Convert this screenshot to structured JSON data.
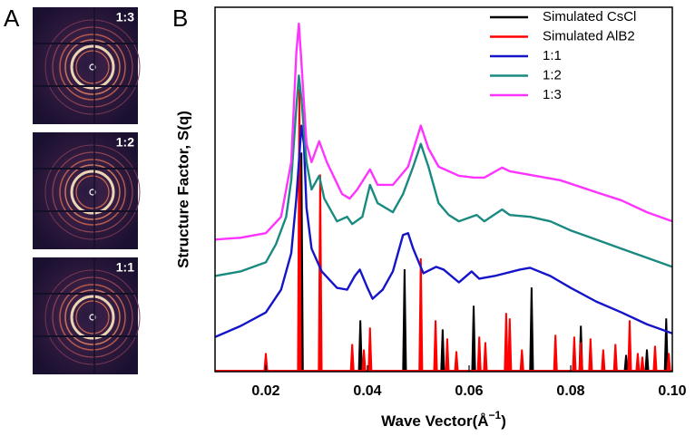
{
  "panel_a": {
    "label": "A",
    "images": [
      {
        "label": "1:3"
      },
      {
        "label": "1:2"
      },
      {
        "label": "1:1"
      }
    ]
  },
  "chart_data": {
    "type": "line",
    "panel_label": "B",
    "xlabel": {
      "text": "Wave Vector(Å",
      "superscript": "−1",
      "suffix": ")"
    },
    "ylabel": "Structure Factor, S(q)",
    "xlim": [
      0.01,
      0.1
    ],
    "ylim": [
      0,
      10
    ],
    "xticks": [
      0.02,
      0.04,
      0.06,
      0.08,
      {
        "value": 0.1,
        "label": "0.10"
      }
    ],
    "legend": "top-right",
    "series": [
      {
        "name": "Simulated CsCl",
        "color": "#000000",
        "mark": "stick",
        "x": [
          0.027,
          0.0386,
          0.0473,
          0.0548,
          0.0609,
          0.0723,
          0.082,
          0.0909,
          0.095,
          0.0988
        ],
        "values": [
          6.0,
          1.4,
          2.8,
          1.15,
          1.8,
          2.3,
          1.25,
          0.45,
          0.6,
          1.45
        ]
      },
      {
        "name": "Simulated AlB2",
        "color": "#ff0000",
        "mark": "stick",
        "x": [
          0.02,
          0.0266,
          0.0307,
          0.037,
          0.0393,
          0.0405,
          0.0505,
          0.0534,
          0.0557,
          0.0575,
          0.062,
          0.0632,
          0.0673,
          0.068,
          0.0704,
          0.077,
          0.0807,
          0.082,
          0.0839,
          0.0864,
          0.0888,
          0.0916,
          0.0932,
          0.0941,
          0.0966,
          0.0993
        ],
        "values": [
          0.5,
          7.75,
          5.4,
          0.75,
          0.6,
          1.2,
          3.1,
          1.4,
          0.9,
          0.55,
          0.95,
          0.8,
          1.6,
          1.45,
          0.6,
          1.0,
          0.95,
          0.8,
          0.9,
          0.6,
          0.75,
          1.4,
          0.5,
          0.4,
          0.7,
          0.5
        ]
      },
      {
        "name": "1:1",
        "color": "#1414c8",
        "mark": "line",
        "x": [
          0.01,
          0.015,
          0.02,
          0.023,
          0.025,
          0.026,
          0.027,
          0.0275,
          0.028,
          0.029,
          0.031,
          0.034,
          0.036,
          0.0375,
          0.0385,
          0.04,
          0.041,
          0.043,
          0.045,
          0.047,
          0.048,
          0.049,
          0.051,
          0.0535,
          0.055,
          0.058,
          0.0605,
          0.062,
          0.065,
          0.07,
          0.072,
          0.076,
          0.08,
          0.085,
          0.09,
          0.095,
          0.1
        ],
        "values": [
          0.95,
          1.25,
          1.625,
          2.25,
          3.25,
          4.75,
          6.75,
          6.25,
          4.5,
          3.375,
          2.75,
          2.3,
          2.25,
          2.625,
          2.8,
          2.3,
          2.0,
          2.25,
          2.75,
          3.75,
          3.8,
          3.375,
          2.7,
          2.875,
          2.8,
          2.45,
          2.75,
          2.55,
          2.625,
          2.8,
          2.85,
          2.625,
          2.3,
          1.925,
          1.625,
          1.3,
          1.05
        ]
      },
      {
        "name": "1:2",
        "color": "#1a8a80",
        "mark": "line",
        "x": [
          0.01,
          0.015,
          0.02,
          0.022,
          0.024,
          0.025,
          0.026,
          0.0265,
          0.027,
          0.028,
          0.029,
          0.0305,
          0.0315,
          0.034,
          0.036,
          0.037,
          0.039,
          0.0405,
          0.042,
          0.045,
          0.047,
          0.049,
          0.0505,
          0.052,
          0.054,
          0.056,
          0.058,
          0.0615,
          0.063,
          0.0665,
          0.068,
          0.072,
          0.076,
          0.08,
          0.085,
          0.09,
          0.095,
          0.1
        ],
        "values": [
          2.625,
          2.75,
          3.0,
          3.5,
          4.25,
          5.25,
          7.25,
          8.125,
          7.5,
          5.75,
          5.0,
          5.375,
          4.75,
          4.125,
          4.25,
          4.05,
          4.25,
          5.125,
          4.625,
          4.375,
          4.875,
          5.625,
          6.25,
          5.625,
          4.625,
          4.3,
          4.125,
          4.3,
          4.125,
          4.45,
          4.3,
          4.25,
          4.125,
          3.875,
          3.625,
          3.375,
          3.125,
          2.875
        ]
      },
      {
        "name": "1:3",
        "color": "#ff33ff",
        "mark": "line",
        "x": [
          0.01,
          0.015,
          0.02,
          0.023,
          0.025,
          0.026,
          0.0265,
          0.027,
          0.028,
          0.029,
          0.0305,
          0.032,
          0.035,
          0.0365,
          0.038,
          0.0405,
          0.042,
          0.045,
          0.048,
          0.0505,
          0.052,
          0.054,
          0.058,
          0.061,
          0.063,
          0.0665,
          0.068,
          0.073,
          0.078,
          0.085,
          0.09,
          0.095,
          0.1
        ],
        "values": [
          3.625,
          3.675,
          3.8,
          4.25,
          5.75,
          8.75,
          9.55,
          8.5,
          6.25,
          5.75,
          6.325,
          5.75,
          4.875,
          4.75,
          5.0,
          5.55,
          5.125,
          5.125,
          5.625,
          6.75,
          6.125,
          5.625,
          5.375,
          5.325,
          5.325,
          5.6,
          5.5,
          5.375,
          5.25,
          4.925,
          4.7,
          4.375,
          4.125
        ]
      }
    ]
  }
}
